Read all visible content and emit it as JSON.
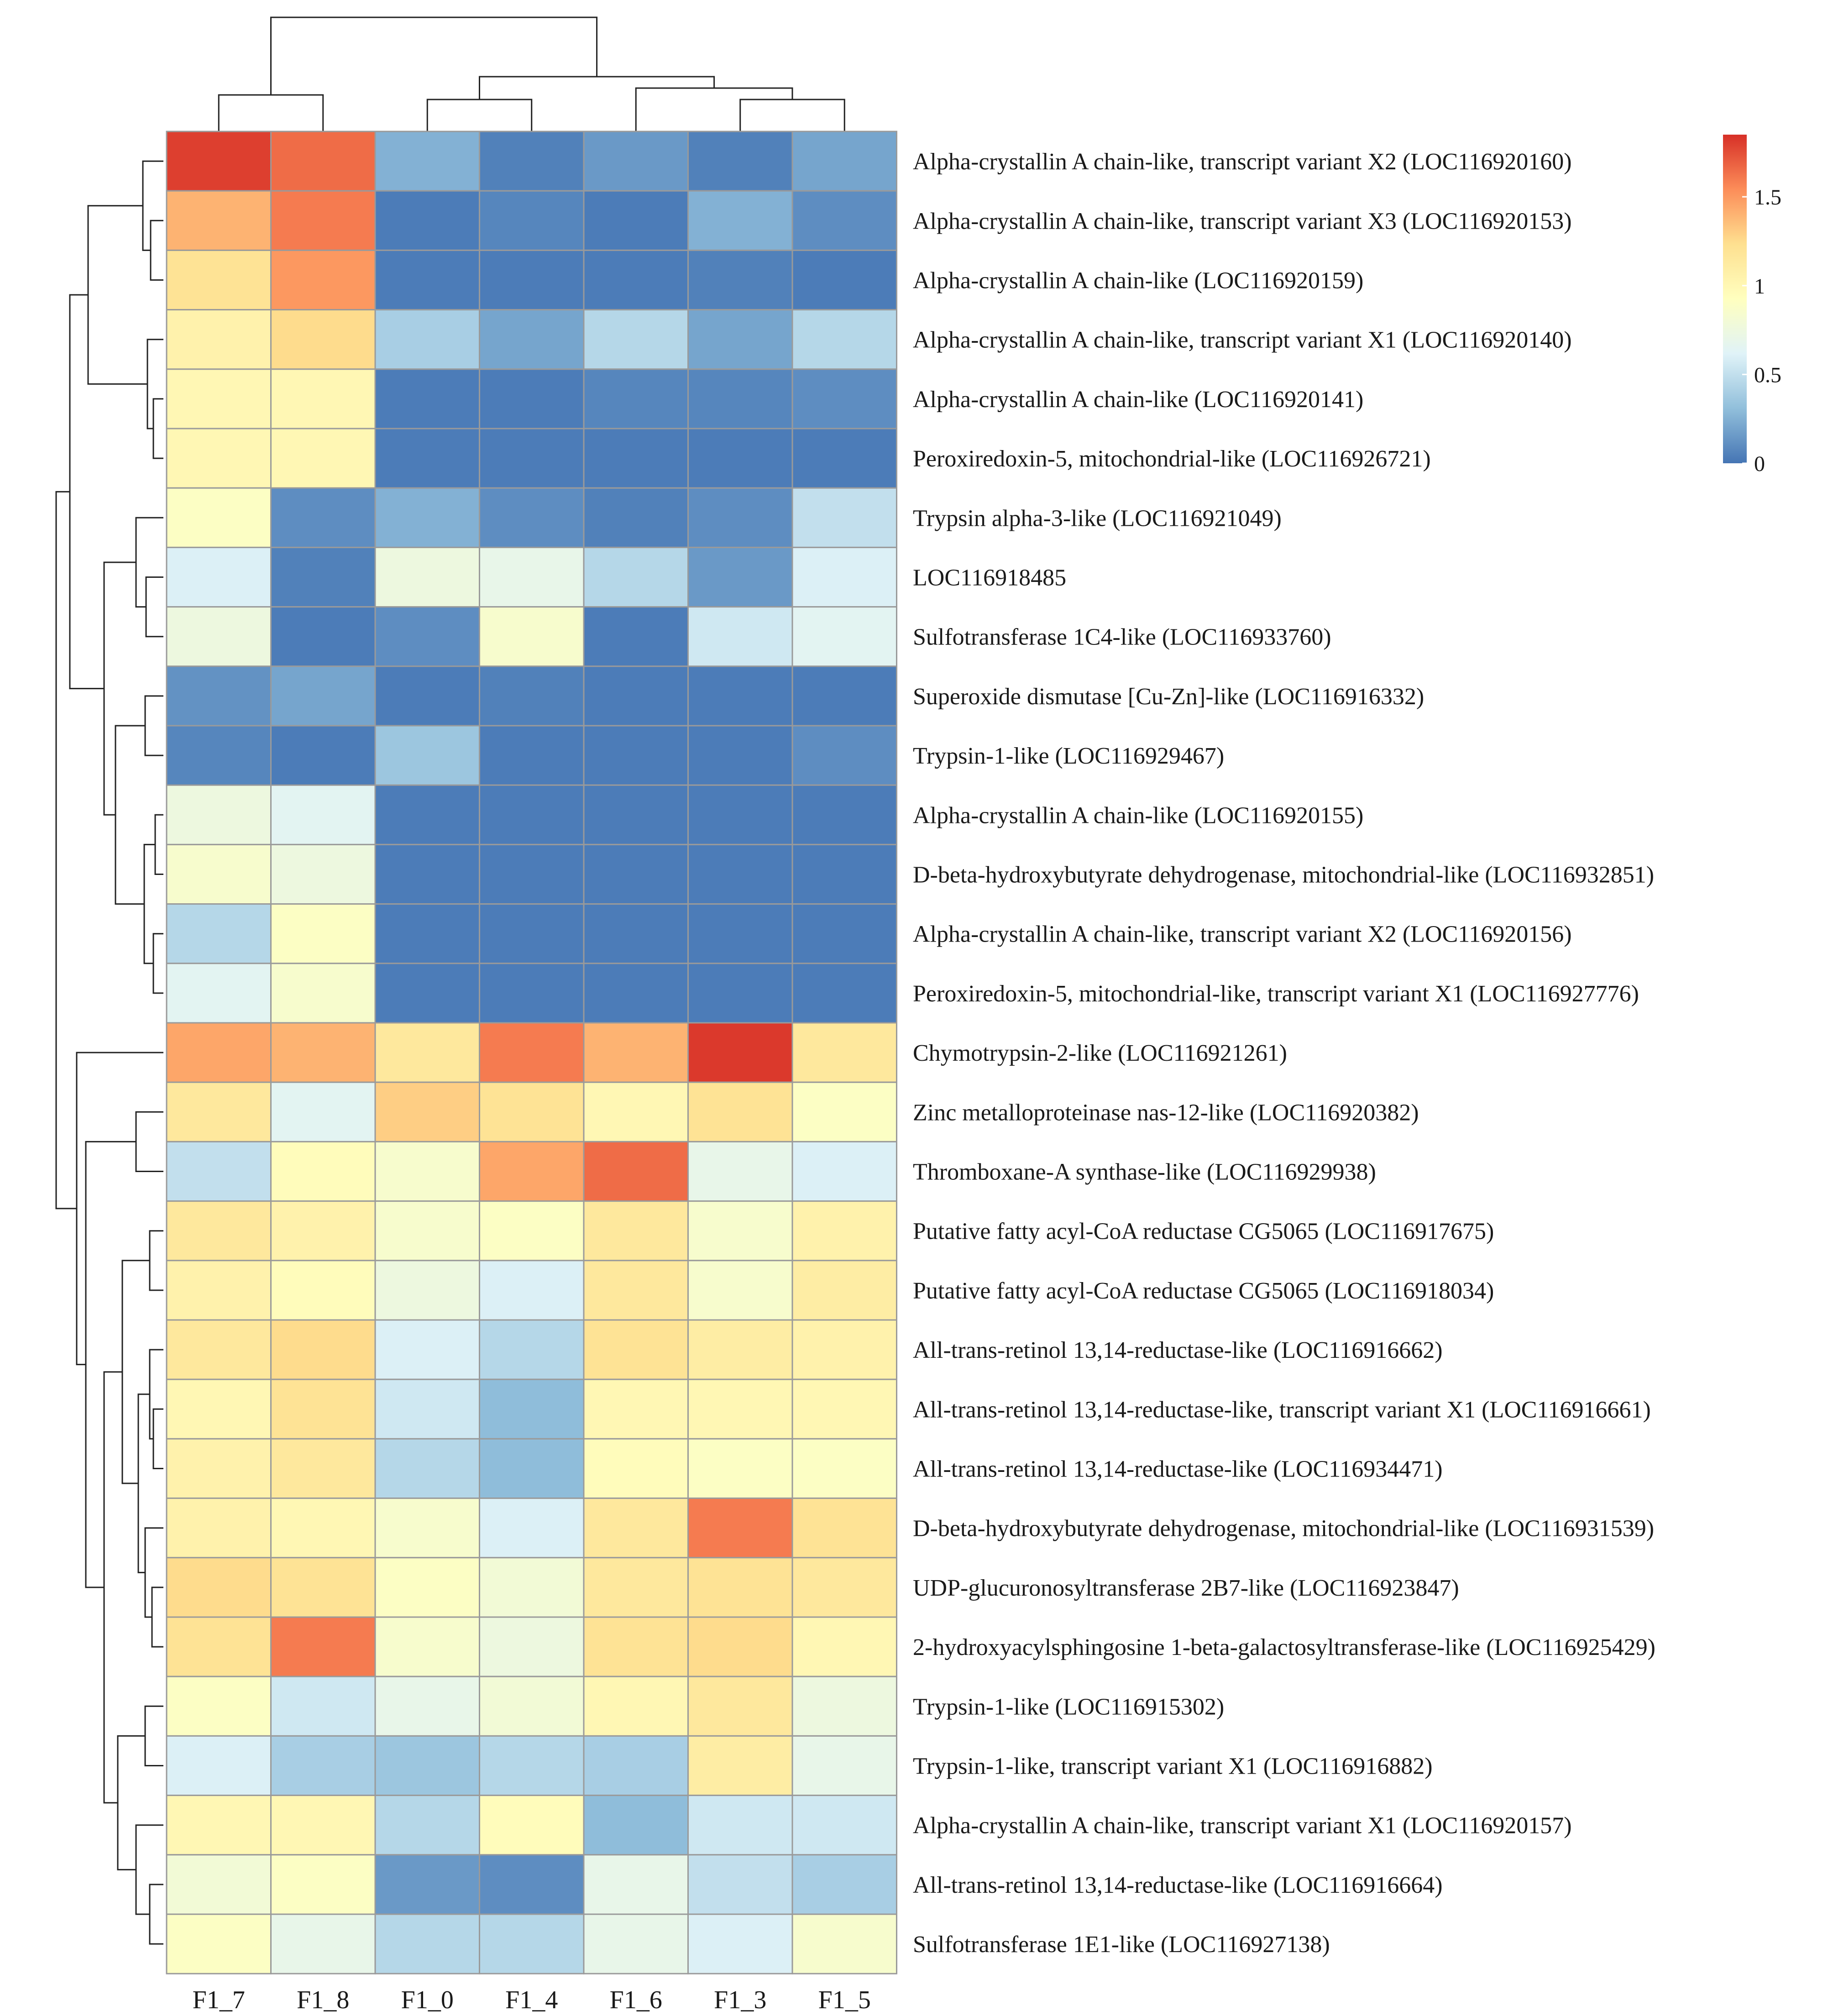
{
  "chart_data": {
    "type": "heatmap",
    "title": "",
    "columns": [
      "F1_7",
      "F1_8",
      "F1_0",
      "F1_4",
      "F1_6",
      "F1_3",
      "F1_5"
    ],
    "rows": [
      "Alpha-crystallin A chain-like, transcript variant X2 (LOC116920160)",
      "Alpha-crystallin A chain-like, transcript variant X3 (LOC116920153)",
      "Alpha-crystallin A chain-like (LOC116920159)",
      "Alpha-crystallin A chain-like, transcript variant X1 (LOC116920140)",
      "Alpha-crystallin A chain-like (LOC116920141)",
      "Peroxiredoxin-5, mitochondrial-like (LOC116926721)",
      "Trypsin alpha-3-like (LOC116921049)",
      "LOC116918485",
      "Sulfotransferase 1C4-like (LOC116933760)",
      "Superoxide dismutase [Cu-Zn]-like (LOC116916332)",
      "Trypsin-1-like (LOC116929467)",
      "Alpha-crystallin A chain-like (LOC116920155)",
      "D-beta-hydroxybutyrate dehydrogenase, mitochondrial-like (LOC116932851)",
      "Alpha-crystallin A chain-like, transcript variant X2 (LOC116920156)",
      "Peroxiredoxin-5, mitochondrial-like, transcript variant X1 (LOC116927776)",
      "Chymotrypsin-2-like (LOC116921261)",
      "Zinc metalloproteinase nas-12-like (LOC116920382)",
      "Thromboxane-A synthase-like (LOC116929938)",
      "Putative fatty acyl-CoA reductase CG5065 (LOC116917675)",
      "Putative fatty acyl-CoA reductase CG5065 (LOC116918034)",
      "All-trans-retinol 13,14-reductase-like (LOC116916662)",
      "All-trans-retinol 13,14-reductase-like, transcript variant X1 (LOC116916661)",
      "All-trans-retinol 13,14-reductase-like (LOC116934471)",
      "D-beta-hydroxybutyrate dehydrogenase, mitochondrial-like (LOC116931539)",
      "UDP-glucuronosyltransferase 2B7-like (LOC116923847)",
      "2-hydroxyacylsphingosine 1-beta-galactosyltransferase-like (LOC116925429)",
      "Trypsin-1-like (LOC116915302)",
      "Trypsin-1-like, transcript variant X1 (LOC116916882)",
      "Alpha-crystallin A chain-like, transcript variant X1 (LOC116920157)",
      "All-trans-retinol 13,14-reductase-like (LOC116916664)",
      "Sulfotransferase 1E1-like (LOC116927138)"
    ],
    "values": [
      [
        1.8,
        1.65,
        0.25,
        0.05,
        0.15,
        0.05,
        0.2
      ],
      [
        1.4,
        1.6,
        0.03,
        0.07,
        0.03,
        0.25,
        0.1
      ],
      [
        1.2,
        1.5,
        0.03,
        0.03,
        0.03,
        0.05,
        0.03
      ],
      [
        1.05,
        1.25,
        0.4,
        0.2,
        0.45,
        0.2,
        0.45
      ],
      [
        1.0,
        1.0,
        0.03,
        0.03,
        0.07,
        0.07,
        0.1
      ],
      [
        1.0,
        1.0,
        0.03,
        0.03,
        0.03,
        0.03,
        0.03
      ],
      [
        0.9,
        0.1,
        0.25,
        0.1,
        0.05,
        0.1,
        0.5
      ],
      [
        0.6,
        0.05,
        0.75,
        0.7,
        0.45,
        0.15,
        0.6
      ],
      [
        0.75,
        0.03,
        0.1,
        0.85,
        0.03,
        0.55,
        0.65
      ],
      [
        0.12,
        0.2,
        0.03,
        0.05,
        0.03,
        0.03,
        0.03
      ],
      [
        0.07,
        0.03,
        0.35,
        0.03,
        0.03,
        0.03,
        0.1
      ],
      [
        0.75,
        0.65,
        0.03,
        0.03,
        0.03,
        0.03,
        0.03
      ],
      [
        0.85,
        0.75,
        0.03,
        0.03,
        0.03,
        0.03,
        0.03
      ],
      [
        0.45,
        0.9,
        0.03,
        0.03,
        0.03,
        0.03,
        0.03
      ],
      [
        0.65,
        0.85,
        0.03,
        0.03,
        0.03,
        0.03,
        0.03
      ],
      [
        1.45,
        1.4,
        1.15,
        1.6,
        1.4,
        1.82,
        1.15
      ],
      [
        1.15,
        0.65,
        1.3,
        1.2,
        1.0,
        1.2,
        0.9
      ],
      [
        0.5,
        0.95,
        0.85,
        1.45,
        1.65,
        0.7,
        0.6
      ],
      [
        1.15,
        1.05,
        0.85,
        0.9,
        1.15,
        0.85,
        1.05
      ],
      [
        1.05,
        0.95,
        0.75,
        0.6,
        1.15,
        0.85,
        1.1
      ],
      [
        1.15,
        1.25,
        0.6,
        0.45,
        1.2,
        1.1,
        1.05
      ],
      [
        1.0,
        1.2,
        0.55,
        0.3,
        1.0,
        1.0,
        1.0
      ],
      [
        1.05,
        1.15,
        0.45,
        0.3,
        0.95,
        0.9,
        0.9
      ],
      [
        1.05,
        1.0,
        0.85,
        0.6,
        1.15,
        1.6,
        1.2
      ],
      [
        1.25,
        1.2,
        0.9,
        0.8,
        1.15,
        1.2,
        1.15
      ],
      [
        1.2,
        1.6,
        0.85,
        0.75,
        1.2,
        1.25,
        1.0
      ],
      [
        0.9,
        0.55,
        0.7,
        0.8,
        1.0,
        1.15,
        0.75
      ],
      [
        0.6,
        0.4,
        0.35,
        0.45,
        0.4,
        1.1,
        0.7
      ],
      [
        1.0,
        1.0,
        0.45,
        0.95,
        0.3,
        0.55,
        0.55
      ],
      [
        0.8,
        0.9,
        0.15,
        0.1,
        0.7,
        0.5,
        0.4
      ],
      [
        0.9,
        0.7,
        0.45,
        0.45,
        0.7,
        0.6,
        0.85
      ]
    ],
    "colorbar": {
      "min": 0,
      "max": 1.85,
      "ticks": [
        0,
        0.5,
        1,
        1.5
      ],
      "tick_labels": [
        "0",
        "0.5",
        "1",
        "1.5"
      ],
      "colors": [
        "#4575b4",
        "#91bfdb",
        "#e0f3f8",
        "#ffffbf",
        "#fee090",
        "#fc8d59",
        "#d73027"
      ]
    },
    "row_dendrogram": true,
    "column_dendrogram": true,
    "legend_position": "top-right"
  }
}
